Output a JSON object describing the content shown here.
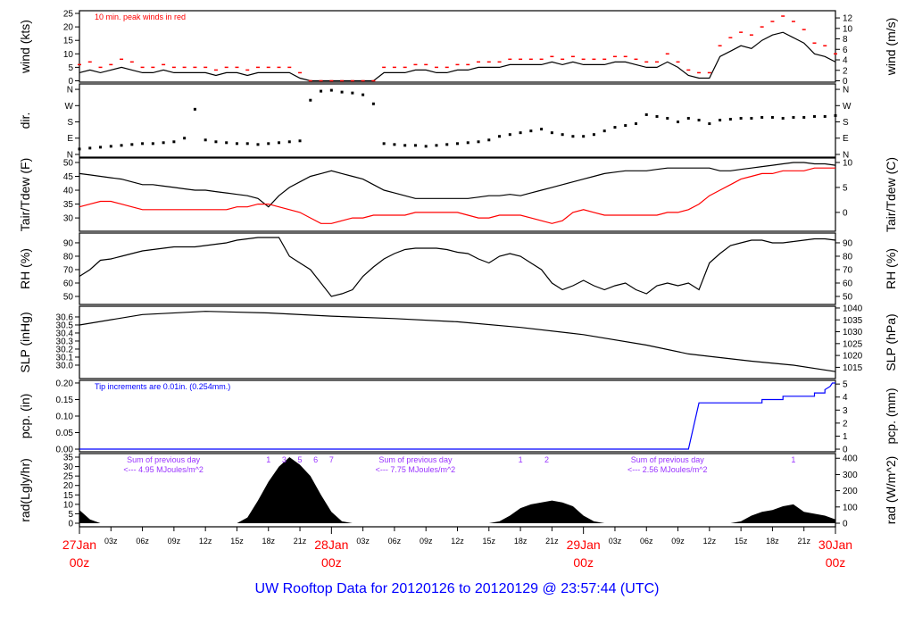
{
  "title": "UW Rooftop Data for 20120126  to  20120129 @ 23:57:44  (UTC)",
  "chart_data": [
    {
      "type": "line",
      "id": "wind",
      "ylabel": "wind (kts)",
      "ylabel_right": "wind (m/s)",
      "ylim": [
        -0.5,
        26
      ],
      "yticks": [
        0,
        5,
        10,
        15,
        20,
        25
      ],
      "yticks_right": [
        0,
        2,
        4,
        6,
        8,
        10,
        12
      ],
      "annotation": "10 min. peak winds in red",
      "series": [
        {
          "name": "wind",
          "color": "#000000",
          "values": [
            3,
            4,
            3,
            4,
            5,
            4,
            3,
            3,
            4,
            3,
            3,
            3,
            3,
            2,
            3,
            3,
            2,
            3,
            3,
            3,
            3,
            1,
            0,
            0,
            0,
            0,
            0,
            0,
            0,
            3,
            3,
            3,
            4,
            4,
            3,
            3,
            4,
            4,
            5,
            5,
            5,
            6,
            6,
            6,
            6,
            7,
            6,
            7,
            6,
            6,
            6,
            7,
            7,
            6,
            5,
            5,
            7,
            5,
            2,
            1,
            1,
            9,
            11,
            13,
            12,
            15,
            17,
            18,
            16,
            14,
            10,
            9,
            7
          ]
        },
        {
          "name": "10 min. peak",
          "color": "#ff0000",
          "values": [
            6,
            7,
            5,
            6,
            8,
            7,
            5,
            5,
            6,
            5,
            5,
            5,
            5,
            4,
            5,
            5,
            4,
            5,
            5,
            5,
            5,
            3,
            0,
            0,
            0,
            0,
            0,
            0,
            0,
            5,
            5,
            5,
            6,
            6,
            5,
            5,
            6,
            6,
            7,
            7,
            7,
            8,
            8,
            8,
            8,
            9,
            8,
            9,
            8,
            8,
            8,
            9,
            9,
            8,
            7,
            7,
            10,
            7,
            4,
            3,
            3,
            13,
            16,
            18,
            17,
            20,
            22,
            24,
            22,
            19,
            14,
            13,
            10
          ]
        }
      ]
    },
    {
      "type": "scatter",
      "id": "dir",
      "ylabel": "dir.",
      "ylim": [
        -15,
        390
      ],
      "yticks": [
        {
          "v": 0,
          "label": "N"
        },
        {
          "v": 90,
          "label": "E"
        },
        {
          "v": 180,
          "label": "S"
        },
        {
          "v": 270,
          "label": "W"
        },
        {
          "v": 360,
          "label": "N"
        }
      ],
      "series": [
        {
          "color": "#000000",
          "values": [
            30,
            35,
            40,
            45,
            50,
            55,
            60,
            60,
            65,
            70,
            90,
            250,
            80,
            70,
            65,
            60,
            60,
            55,
            60,
            65,
            70,
            75,
            300,
            350,
            355,
            345,
            340,
            330,
            280,
            60,
            55,
            50,
            50,
            45,
            50,
            55,
            60,
            65,
            70,
            80,
            100,
            110,
            120,
            130,
            140,
            120,
            110,
            100,
            100,
            110,
            130,
            150,
            160,
            170,
            220,
            210,
            200,
            180,
            200,
            190,
            170,
            190,
            195,
            200,
            200,
            205,
            205,
            200,
            205,
            205,
            210,
            210,
            215
          ]
        }
      ]
    },
    {
      "type": "line",
      "id": "temp",
      "ylabel": "Tair/Tdew (F)",
      "ylabel_right": "Tair/Tdew (C)",
      "ylim": [
        25.2,
        51.6
      ],
      "yticks": [
        30,
        35,
        40,
        45,
        50
      ],
      "yticks_right": [
        0,
        5,
        10
      ],
      "series": [
        {
          "name": "Tair",
          "color": "#000000",
          "values": [
            46,
            45.5,
            45,
            44.5,
            44,
            43,
            42,
            42,
            41.5,
            41,
            40.5,
            40,
            40,
            39.5,
            39,
            38.5,
            38,
            37,
            34,
            38,
            41,
            43,
            45,
            46,
            47,
            46,
            45,
            44,
            42,
            40,
            39,
            38,
            37,
            37,
            37,
            37,
            37,
            37,
            37.5,
            38,
            38,
            38.5,
            38,
            39,
            40,
            41,
            42,
            43,
            44,
            45,
            46,
            46.5,
            47,
            47,
            47,
            47.5,
            48,
            48,
            48,
            48,
            48,
            47,
            47,
            47.5,
            48,
            48.5,
            49,
            49.5,
            50,
            50,
            49.5,
            49.5,
            49
          ]
        },
        {
          "name": "Tdew",
          "color": "#ff0000",
          "values": [
            34,
            35,
            36,
            36,
            35,
            34,
            33,
            33,
            33,
            33,
            33,
            33,
            33,
            33,
            33,
            34,
            34,
            35,
            35,
            34,
            33,
            32,
            30,
            28,
            28,
            29,
            30,
            30,
            31,
            31,
            31,
            31,
            32,
            32,
            32,
            32,
            32,
            31,
            30,
            30,
            31,
            31,
            31,
            30,
            29,
            28,
            29,
            32,
            33,
            32,
            31,
            31,
            31,
            31,
            31,
            31,
            32,
            32,
            33,
            35,
            38,
            40,
            42,
            44,
            45,
            46,
            46,
            47,
            47,
            47,
            48,
            48,
            48
          ]
        }
      ]
    },
    {
      "type": "line",
      "id": "rh",
      "ylabel": "RH (%)",
      "ylabel_right": "RH (%)",
      "ylim": [
        44,
        97.3
      ],
      "yticks": [
        50,
        60,
        70,
        80,
        90
      ],
      "yticks_right": [
        50,
        60,
        70,
        80,
        90
      ],
      "series": [
        {
          "color": "#000000",
          "values": [
            65,
            70,
            77,
            78,
            80,
            82,
            84,
            85,
            86,
            87,
            87,
            87,
            88,
            89,
            90,
            92,
            93,
            94,
            94,
            94,
            80,
            75,
            70,
            60,
            50,
            52,
            55,
            65,
            72,
            78,
            82,
            85,
            86,
            86,
            86,
            85,
            83,
            82,
            78,
            75,
            80,
            82,
            80,
            75,
            70,
            60,
            55,
            58,
            62,
            58,
            55,
            58,
            60,
            55,
            52,
            58,
            60,
            58,
            60,
            55,
            75,
            82,
            88,
            90,
            92,
            92,
            90,
            90,
            91,
            92,
            93,
            93,
            92
          ]
        }
      ]
    },
    {
      "type": "line",
      "id": "slp",
      "ylabel": "SLP (inHg)",
      "ylabel_right": "SLP (hPa)",
      "ylim": [
        29.833,
        30.733
      ],
      "yticks": [
        30.0,
        30.1,
        30.2,
        30.3,
        30.4,
        30.5,
        30.6
      ],
      "yticks_right": [
        1015,
        1020,
        1025,
        1030,
        1035,
        1040
      ],
      "series": [
        {
          "color": "#000000",
          "points": [
            [
              0,
              30.5
            ],
            [
              6,
              30.63
            ],
            [
              12,
              30.67
            ],
            [
              18,
              30.65
            ],
            [
              24,
              30.61
            ],
            [
              30,
              30.58
            ],
            [
              36,
              30.54
            ],
            [
              42,
              30.47
            ],
            [
              48,
              30.38
            ],
            [
              54,
              30.25
            ],
            [
              58,
              30.14
            ],
            [
              60,
              30.11
            ],
            [
              64,
              30.05
            ],
            [
              68,
              30.0
            ],
            [
              72,
              29.92
            ]
          ]
        }
      ]
    },
    {
      "type": "line",
      "id": "pcp",
      "ylabel": "pcp. (in)",
      "ylabel_right": "pcp. (mm)",
      "ylim": [
        -0.008,
        0.208
      ],
      "yticks": [
        0.0,
        0.05,
        0.1,
        0.15,
        0.2
      ],
      "yticks_right": [
        0,
        1,
        2,
        3,
        4,
        5
      ],
      "annotation": "Tip increments are 0.01in. (0.254mm.)",
      "series": [
        {
          "color": "#0000ff",
          "points": [
            [
              0,
              0
            ],
            [
              58,
              0
            ],
            [
              59,
              0.14
            ],
            [
              65,
              0.14
            ],
            [
              65,
              0.15
            ],
            [
              67,
              0.15
            ],
            [
              67,
              0.16
            ],
            [
              70,
              0.16
            ],
            [
              70,
              0.17
            ],
            [
              71,
              0.17
            ],
            [
              71,
              0.18
            ],
            [
              71.5,
              0.19
            ],
            [
              71.7,
              0.2
            ],
            [
              72,
              0.2
            ]
          ]
        }
      ]
    },
    {
      "type": "area",
      "id": "rad",
      "ylabel": "rad(Lgly/hr)",
      "ylabel_right": "rad (W/m^2)",
      "ylim": [
        -1.9,
        36.9
      ],
      "yticks": [
        0,
        5,
        10,
        15,
        20,
        25,
        30,
        35
      ],
      "yticks_right": [
        0,
        100,
        200,
        300,
        400
      ],
      "series": [
        {
          "color": "#000000",
          "values": [
            7,
            2,
            0,
            0,
            0,
            0,
            0,
            0,
            0,
            0,
            0,
            0,
            0,
            0,
            0,
            0,
            3,
            12,
            22,
            30,
            35,
            31,
            25,
            15,
            6,
            1,
            0,
            0,
            0,
            0,
            0,
            0,
            0,
            0,
            0,
            0,
            0,
            0,
            0,
            0,
            1,
            4,
            8,
            10,
            11,
            12,
            11,
            9,
            4,
            1,
            0,
            0,
            0,
            0,
            0,
            0,
            0,
            0,
            0,
            0,
            0,
            0,
            0,
            1,
            4,
            6,
            7,
            9,
            10,
            6,
            5,
            4,
            2
          ]
        }
      ],
      "daily_sums": [
        {
          "hour": 8,
          "line1": "Sum of previous day",
          "line2": "<--- 4.95 MJoules/m^2"
        },
        {
          "hour": 32,
          "line1": "Sum of previous day",
          "line2": "<--- 7.75 MJoules/m^2"
        },
        {
          "hour": 56,
          "line1": "Sum of previous day",
          "line2": "<--- 2.56 MJoules/m^2"
        }
      ],
      "marks": [
        {
          "hour": 18,
          "label": "1"
        },
        {
          "hour": 19.5,
          "label": "3"
        },
        {
          "hour": 21,
          "label": "5"
        },
        {
          "hour": 22.5,
          "label": "6"
        },
        {
          "hour": 42,
          "label": "1"
        },
        {
          "hour": 44.5,
          "label": "2"
        },
        {
          "hour": 68,
          "label": "1"
        },
        {
          "hour": 24,
          "label": "7"
        }
      ],
      "annotation_color": "#9933ff"
    }
  ],
  "xaxis": {
    "range_hours": [
      0,
      72
    ],
    "hour_ticks": [
      "03z",
      "06z",
      "09z",
      "12z",
      "15z",
      "18z",
      "21z"
    ],
    "days": [
      {
        "hour": 0,
        "day": "27Jan",
        "time": "00z"
      },
      {
        "hour": 24,
        "day": "28Jan",
        "time": "00z"
      },
      {
        "hour": 48,
        "day": "29Jan",
        "time": "00z"
      },
      {
        "hour": 72,
        "day": "30Jan",
        "time": "00z"
      }
    ],
    "day_color": "#ff0000"
  }
}
